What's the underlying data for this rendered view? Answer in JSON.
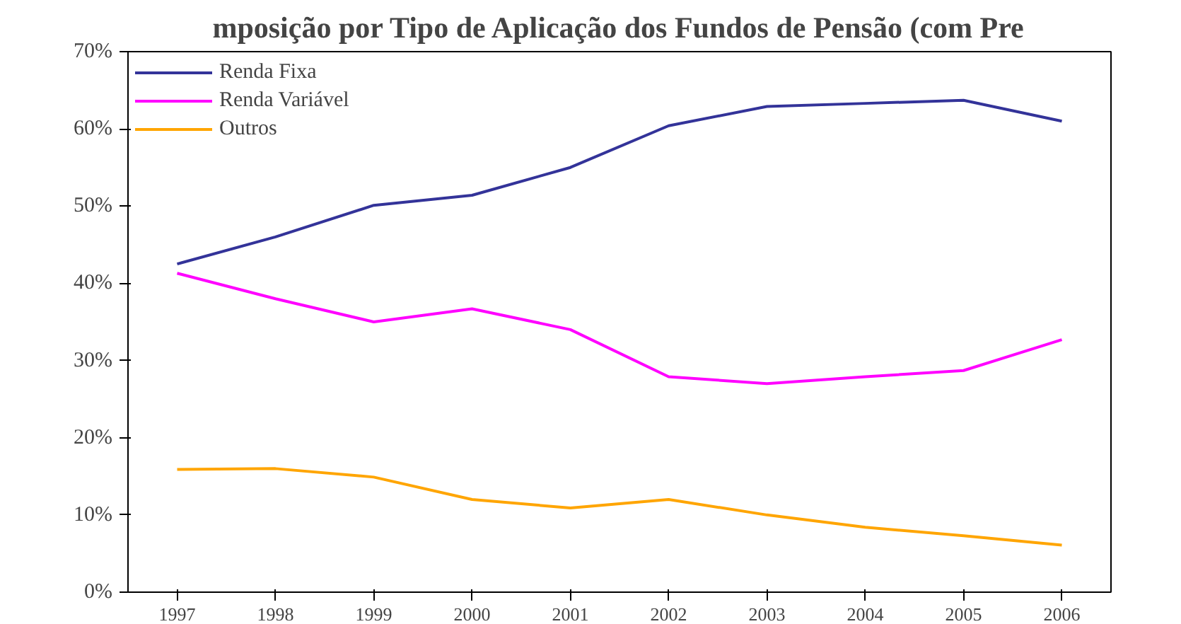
{
  "chart_data": {
    "type": "line",
    "title": "mposição por Tipo de Aplicação dos Fundos de Pensão (com Pre",
    "categories": [
      "1997",
      "1998",
      "1999",
      "2000",
      "2001",
      "2002",
      "2003",
      "2004",
      "2005",
      "2006"
    ],
    "series": [
      {
        "name": "Renda Fixa",
        "color": "#333399",
        "values": [
          42.5,
          46,
          50.1,
          51.4,
          55,
          60.4,
          62.9,
          63.3,
          63.7,
          61
        ]
      },
      {
        "name": "Renda Variável",
        "color": "#ff00ff",
        "values": [
          41.3,
          38,
          35,
          36.7,
          34,
          27.9,
          27,
          27.9,
          28.7,
          32.7
        ]
      },
      {
        "name": "Outros",
        "color": "#ffa500",
        "values": [
          15.9,
          16,
          14.9,
          12,
          10.9,
          12,
          10,
          8.4,
          7.3,
          6.1
        ]
      }
    ],
    "ylim": [
      0,
      70
    ],
    "yticks": [
      {
        "value": 0,
        "label": "0%"
      },
      {
        "value": 10,
        "label": "10%"
      },
      {
        "value": 20,
        "label": "20%"
      },
      {
        "value": 30,
        "label": "30%"
      },
      {
        "value": 40,
        "label": "40%"
      },
      {
        "value": 50,
        "label": "50%"
      },
      {
        "value": 60,
        "label": "60%"
      },
      {
        "value": 70,
        "label": "70%"
      }
    ],
    "grid": false,
    "legend": "top left",
    "marker": "none",
    "line_style": "solid"
  }
}
